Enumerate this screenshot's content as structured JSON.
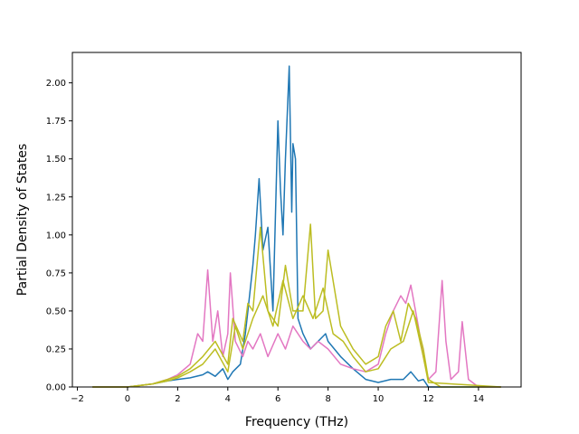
{
  "chart_data": {
    "type": "line",
    "xlabel": "Frequency (THz)",
    "ylabel": "Partial Density of States",
    "xlim": [
      -2.2,
      15.7
    ],
    "ylim": [
      0,
      2.2
    ],
    "xticks": [
      -2,
      0,
      2,
      4,
      6,
      8,
      10,
      12,
      14
    ],
    "yticks": [
      "0.00",
      "0.25",
      "0.50",
      "0.75",
      "1.00",
      "1.25",
      "1.50",
      "1.75",
      "2.00"
    ],
    "grid": false,
    "legend": "none",
    "series": [
      {
        "color": "#1f77b4",
        "x": [
          -1.4,
          0,
          1.0,
          1.6,
          2.0,
          2.5,
          3.0,
          3.2,
          3.5,
          3.8,
          4.0,
          4.2,
          4.5,
          4.7,
          4.8,
          5.0,
          5.1,
          5.25,
          5.4,
          5.6,
          5.8,
          6.0,
          6.1,
          6.2,
          6.3,
          6.45,
          6.55,
          6.6,
          6.7,
          6.8,
          7.0,
          7.3,
          7.6,
          7.9,
          8.0,
          8.5,
          9.0,
          9.5,
          10.0,
          10.5,
          11.0,
          11.3,
          11.6,
          11.8,
          12.0,
          13.0,
          14.9
        ],
        "y": [
          0,
          0,
          0.02,
          0.04,
          0.05,
          0.06,
          0.08,
          0.1,
          0.07,
          0.12,
          0.05,
          0.1,
          0.15,
          0.35,
          0.5,
          0.8,
          1.0,
          1.37,
          0.9,
          1.05,
          0.5,
          1.75,
          1.3,
          1.0,
          1.5,
          2.11,
          1.15,
          1.6,
          1.5,
          0.45,
          0.35,
          0.25,
          0.3,
          0.35,
          0.3,
          0.2,
          0.12,
          0.05,
          0.03,
          0.05,
          0.05,
          0.1,
          0.04,
          0.05,
          0,
          0,
          0
        ]
      },
      {
        "color": "#e377c2",
        "x": [
          -1.4,
          0,
          1.0,
          1.6,
          2.0,
          2.5,
          2.8,
          3.0,
          3.2,
          3.4,
          3.6,
          3.8,
          4.0,
          4.1,
          4.3,
          4.6,
          4.8,
          5.0,
          5.3,
          5.6,
          6.0,
          6.3,
          6.6,
          7.0,
          7.3,
          7.6,
          8.0,
          8.5,
          9.0,
          9.5,
          10.0,
          10.3,
          10.6,
          10.9,
          11.1,
          11.3,
          11.6,
          11.8,
          12.0,
          12.3,
          12.55,
          12.7,
          12.9,
          13.2,
          13.35,
          13.6,
          14.0,
          14.9
        ],
        "y": [
          0,
          0,
          0.02,
          0.05,
          0.08,
          0.15,
          0.35,
          0.3,
          0.77,
          0.3,
          0.5,
          0.2,
          0.35,
          0.75,
          0.3,
          0.2,
          0.3,
          0.25,
          0.35,
          0.2,
          0.35,
          0.25,
          0.4,
          0.3,
          0.25,
          0.3,
          0.25,
          0.15,
          0.12,
          0.1,
          0.15,
          0.35,
          0.5,
          0.6,
          0.55,
          0.67,
          0.4,
          0.2,
          0.05,
          0.1,
          0.7,
          0.3,
          0.05,
          0.1,
          0.43,
          0.05,
          0,
          0
        ]
      },
      {
        "color": "#bcbd22",
        "x": [
          -1.4,
          0,
          1.0,
          1.6,
          2.0,
          2.5,
          3.0,
          3.5,
          4.0,
          4.2,
          4.6,
          4.8,
          5.0,
          5.3,
          5.6,
          6.0,
          6.3,
          6.6,
          7.0,
          7.3,
          7.5,
          7.8,
          8.0,
          8.5,
          9.0,
          9.5,
          10.0,
          10.3,
          10.6,
          10.9,
          11.2,
          11.5,
          11.8,
          12.0,
          12.5,
          14.9
        ],
        "y": [
          0,
          0,
          0.02,
          0.05,
          0.07,
          0.12,
          0.2,
          0.3,
          0.15,
          0.45,
          0.3,
          0.55,
          0.5,
          1.05,
          0.5,
          0.4,
          0.8,
          0.5,
          0.5,
          1.07,
          0.45,
          0.5,
          0.9,
          0.4,
          0.25,
          0.15,
          0.2,
          0.4,
          0.5,
          0.3,
          0.55,
          0.45,
          0.25,
          0.05,
          0,
          0
        ]
      },
      {
        "color": "#bcbd22",
        "x": [
          -1.4,
          0,
          1.0,
          1.6,
          2.0,
          2.5,
          3.0,
          3.5,
          4.0,
          4.3,
          4.6,
          5.0,
          5.4,
          5.8,
          6.2,
          6.6,
          7.0,
          7.4,
          7.8,
          8.2,
          8.6,
          9.0,
          9.5,
          10.0,
          10.5,
          11.0,
          11.4,
          11.8,
          12.0,
          14.9
        ],
        "y": [
          0,
          0,
          0.02,
          0.04,
          0.06,
          0.1,
          0.15,
          0.25,
          0.1,
          0.4,
          0.25,
          0.45,
          0.6,
          0.4,
          0.7,
          0.45,
          0.6,
          0.45,
          0.65,
          0.35,
          0.3,
          0.2,
          0.1,
          0.12,
          0.25,
          0.3,
          0.5,
          0.2,
          0.03,
          0
        ]
      }
    ]
  }
}
